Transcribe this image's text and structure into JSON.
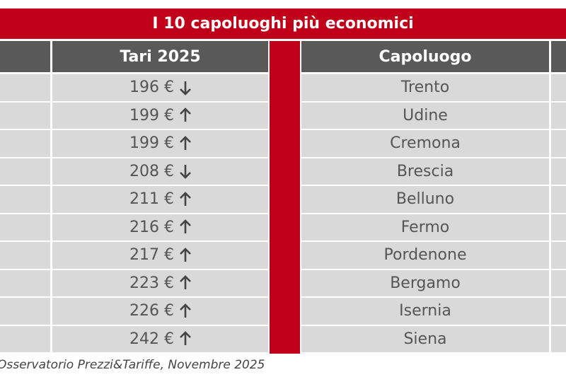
{
  "title": "I 10 capoluoghi più economici",
  "table": {
    "header": [
      "Tari 2025",
      "Capoluogo"
    ],
    "rows": [
      {
        "tari": "196 €",
        "trend": "down",
        "city": "Trento"
      },
      {
        "tari": "199 €",
        "trend": "up",
        "city": "Udine"
      },
      {
        "tari": "199 €",
        "trend": "up",
        "city": "Cremona"
      },
      {
        "tari": "208 €",
        "trend": "down",
        "city": "Brescia"
      },
      {
        "tari": "211 €",
        "trend": "up",
        "city": "Belluno"
      },
      {
        "tari": "216 €",
        "trend": "up",
        "city": "Fermo"
      },
      {
        "tari": "217 €",
        "trend": "up",
        "city": "Pordenone"
      },
      {
        "tari": "223 €",
        "trend": "up",
        "city": "Bergamo"
      },
      {
        "tari": "226 €",
        "trend": "up",
        "city": "Isernia"
      },
      {
        "tari": "242 €",
        "trend": "up",
        "city": "Siena"
      }
    ]
  },
  "source": "Osservatorio Prezzi&Tariffe, Novembre 2025"
}
